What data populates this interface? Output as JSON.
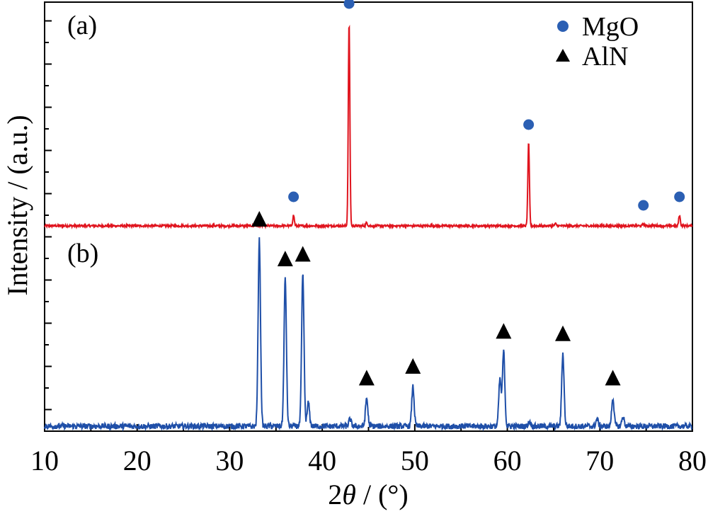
{
  "chart_data": {
    "type": "line",
    "xlabel_prefix": "2",
    "xlabel_symbol": "θ",
    "xlabel_suffix": " / (°)",
    "ylabel": "Intensity / (a.u.)",
    "xlim": [
      10,
      80
    ],
    "x_ticks": [
      "10",
      "20",
      "30",
      "40",
      "50",
      "60",
      "70",
      "80"
    ],
    "grid": false,
    "legend_position": "top-right",
    "legend": [
      {
        "name": "MgO",
        "marker": "circle",
        "color": "#2b5fb3"
      },
      {
        "name": "AlN",
        "marker": "triangle",
        "color": "#000000"
      }
    ],
    "series": [
      {
        "label": "(a)",
        "color": "#e0141e",
        "baseline": 0,
        "peaks": [
          {
            "x": 36.9,
            "y": 5,
            "phase": "MgO"
          },
          {
            "x": 42.9,
            "y": 96,
            "phase": "MgO"
          },
          {
            "x": 44.8,
            "y": 1.5,
            "phase": ""
          },
          {
            "x": 62.3,
            "y": 39,
            "phase": "MgO"
          },
          {
            "x": 65.2,
            "y": 1,
            "phase": ""
          },
          {
            "x": 74.7,
            "y": 1,
            "phase": "MgO"
          },
          {
            "x": 78.6,
            "y": 5,
            "phase": "MgO"
          }
        ]
      },
      {
        "label": "(b)",
        "color": "#1f4fa8",
        "baseline": 0,
        "peaks": [
          {
            "x": 33.2,
            "y": 80,
            "phase": "AlN"
          },
          {
            "x": 36.0,
            "y": 63,
            "phase": "AlN"
          },
          {
            "x": 37.9,
            "y": 65,
            "phase": "AlN"
          },
          {
            "x": 38.5,
            "y": 10,
            "phase": ""
          },
          {
            "x": 43.0,
            "y": 3,
            "phase": ""
          },
          {
            "x": 44.8,
            "y": 12,
            "phase": "AlN"
          },
          {
            "x": 49.8,
            "y": 17,
            "phase": "AlN"
          },
          {
            "x": 59.2,
            "y": 20,
            "phase": ""
          },
          {
            "x": 59.6,
            "y": 32,
            "phase": "AlN"
          },
          {
            "x": 62.4,
            "y": 2,
            "phase": ""
          },
          {
            "x": 66.0,
            "y": 31,
            "phase": "AlN"
          },
          {
            "x": 69.7,
            "y": 3,
            "phase": ""
          },
          {
            "x": 71.4,
            "y": 12,
            "phase": "AlN"
          },
          {
            "x": 72.5,
            "y": 4,
            "phase": ""
          }
        ]
      }
    ]
  }
}
